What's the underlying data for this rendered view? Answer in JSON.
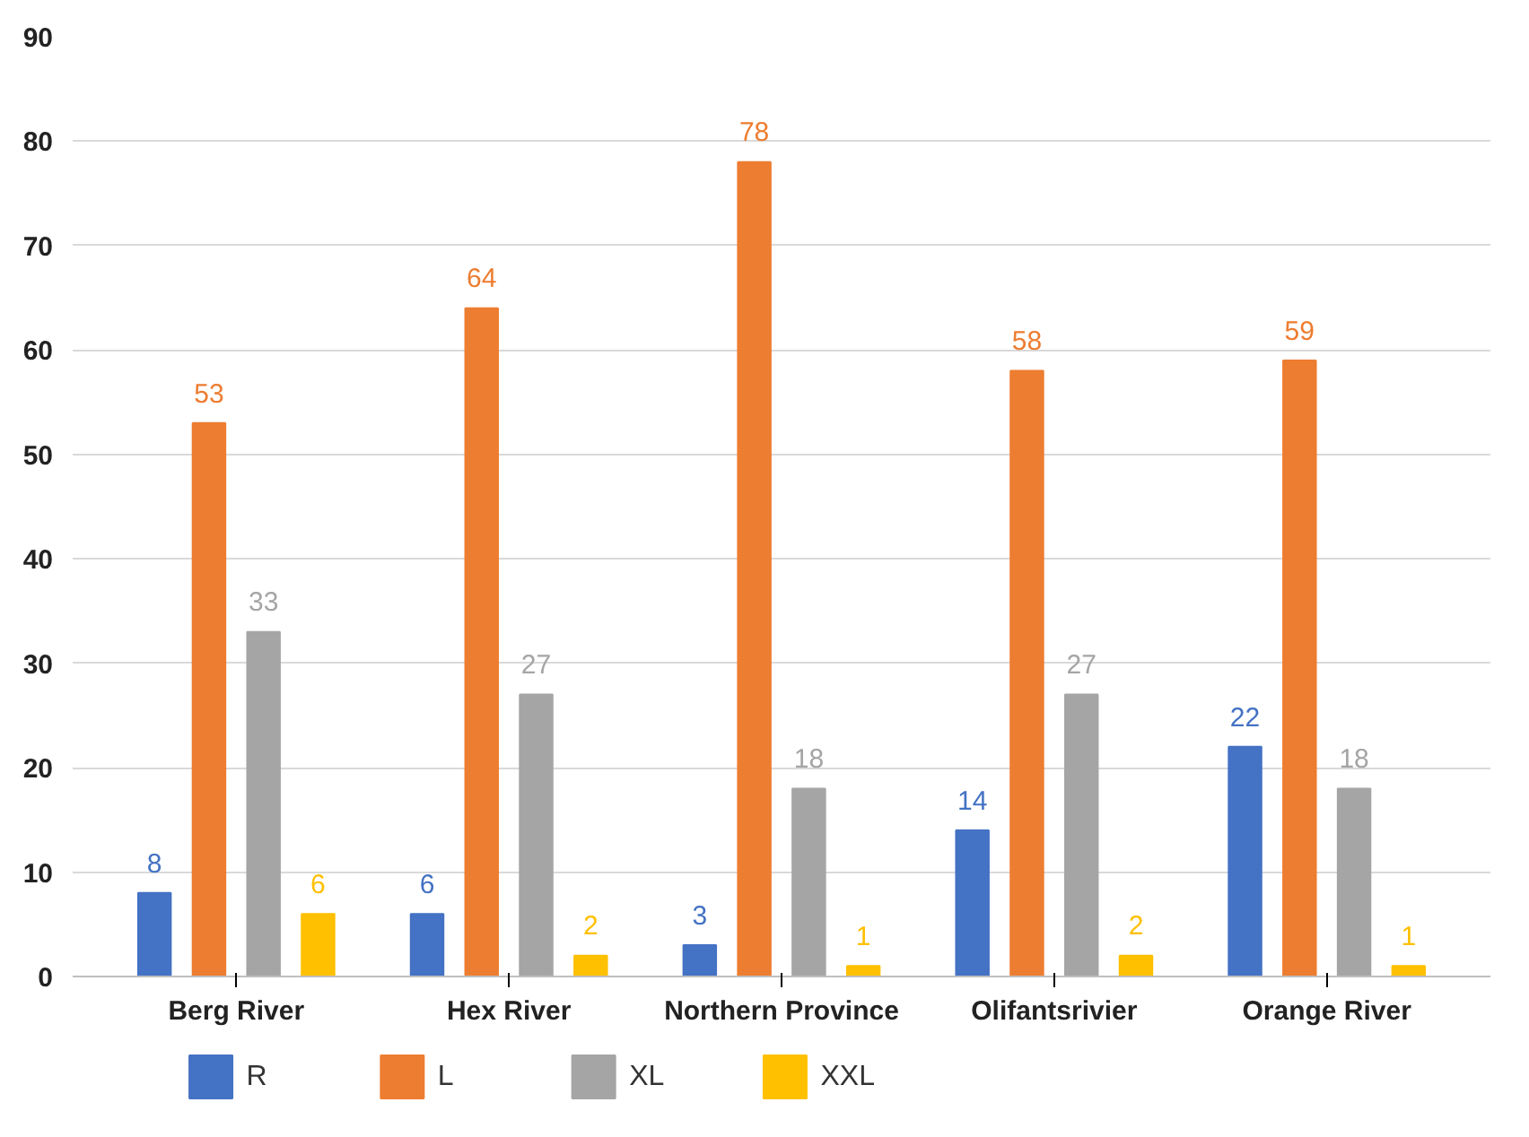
{
  "chart_data": {
    "type": "bar",
    "categories": [
      "Berg River",
      "Hex River",
      "Northern Province",
      "Olifantsrivier",
      "Orange River"
    ],
    "series": [
      {
        "name": "R",
        "color": "#4472c4",
        "values": [
          8,
          6,
          3,
          14,
          22
        ]
      },
      {
        "name": "L",
        "color": "#ed7d31",
        "values": [
          53,
          64,
          78,
          58,
          59
        ]
      },
      {
        "name": "XL",
        "color": "#a5a5a5",
        "values": [
          33,
          27,
          18,
          27,
          18
        ]
      },
      {
        "name": "XXL",
        "color": "#ffc000",
        "values": [
          6,
          2,
          1,
          2,
          1
        ]
      }
    ],
    "ylim": [
      0,
      90
    ],
    "yticks": [
      0,
      10,
      20,
      30,
      40,
      50,
      60,
      70,
      80,
      90
    ],
    "grid": "y",
    "legend": "bottom",
    "data_labels": true
  }
}
